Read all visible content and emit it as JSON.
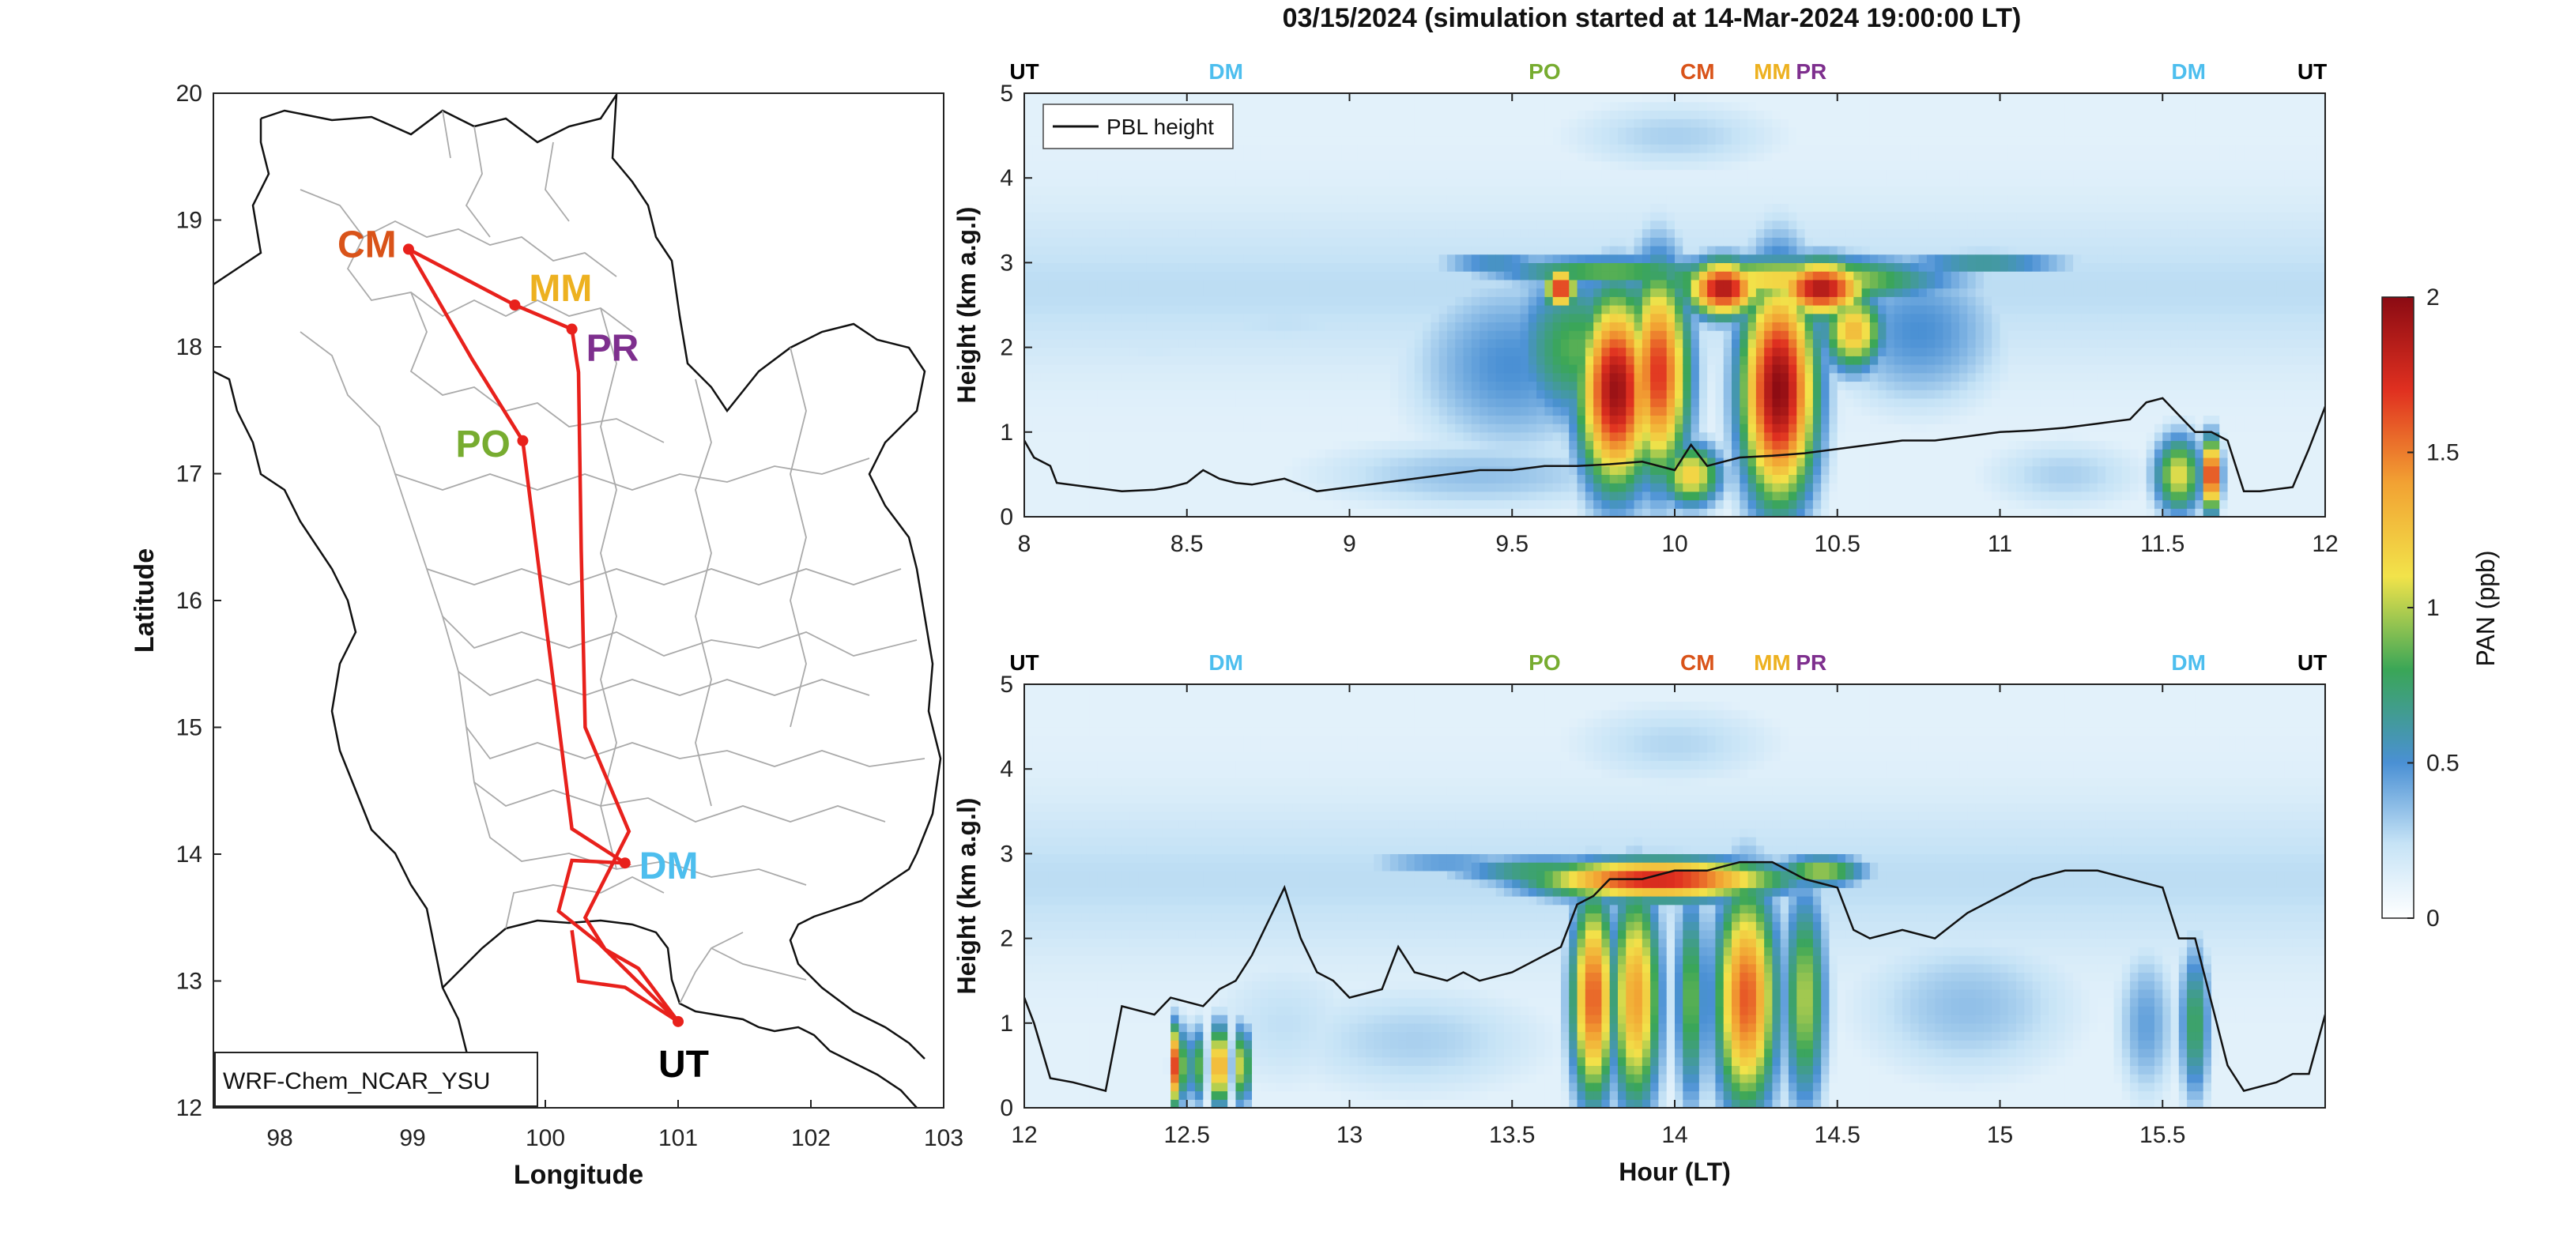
{
  "figure": {
    "title": "03/15/2024 (simulation started at 14-Mar-2024 19:00:00 LT)"
  },
  "map": {
    "xlabel": "Longitude",
    "ylabel": "Latitude",
    "xlim": [
      97.5,
      103
    ],
    "ylim": [
      12,
      20
    ],
    "xticks": [
      "98",
      "99",
      "100",
      "101",
      "102",
      "103"
    ],
    "yticks": [
      "12",
      "13",
      "14",
      "15",
      "16",
      "17",
      "18",
      "19",
      "20"
    ],
    "model_label": "WRF-Chem_NCAR_YSU",
    "route_color": "#e8211c",
    "sites": [
      {
        "name": "CM",
        "lon": 98.97,
        "lat": 18.77,
        "color": "#d95319"
      },
      {
        "name": "MM",
        "lon": 99.77,
        "lat": 18.33,
        "color": "#edb120"
      },
      {
        "name": "PR",
        "lon": 100.2,
        "lat": 18.14,
        "color": "#7e2f8e"
      },
      {
        "name": "PO",
        "lon": 99.83,
        "lat": 17.26,
        "color": "#77ac30"
      },
      {
        "name": "DM",
        "lon": 100.6,
        "lat": 13.93,
        "color": "#4dbeee"
      },
      {
        "name": "UT",
        "lon": 101.0,
        "lat": 12.68,
        "color": "#000000"
      }
    ]
  },
  "colorbar": {
    "label": "PAN (ppb)",
    "ticks": [
      "0",
      "0.5",
      "1",
      "1.5",
      "2"
    ],
    "range": [
      0,
      2
    ]
  },
  "chart_data": [
    {
      "type": "heatmap",
      "name": "upper",
      "xlabel": "",
      "ylabel": "Height (km a.g.l)",
      "xlim": [
        8,
        12
      ],
      "ylim": [
        0,
        5
      ],
      "xticks": [
        "8",
        "8.5",
        "9",
        "9.5",
        "10",
        "10.5",
        "11",
        "11.5",
        "12"
      ],
      "yticks": [
        "0",
        "1",
        "2",
        "3",
        "4",
        "5"
      ],
      "legend": "PBL height",
      "legend_position": "top-left",
      "top_labels": [
        {
          "text": "UT",
          "x": 8.0,
          "color": "#000000"
        },
        {
          "text": "DM",
          "x": 8.62,
          "color": "#4dbeee"
        },
        {
          "text": "PO",
          "x": 9.6,
          "color": "#77ac30"
        },
        {
          "text": "CM",
          "x": 10.07,
          "color": "#d95319"
        },
        {
          "text": "MM",
          "x": 10.3,
          "color": "#edb120"
        },
        {
          "text": "PR",
          "x": 10.42,
          "color": "#7e2f8e"
        },
        {
          "text": "DM",
          "x": 11.58,
          "color": "#4dbeee"
        },
        {
          "text": "UT",
          "x": 11.96,
          "color": "#000000"
        }
      ],
      "pbl_height": {
        "x": [
          8.0,
          8.03,
          8.08,
          8.1,
          8.2,
          8.3,
          8.4,
          8.45,
          8.5,
          8.55,
          8.6,
          8.65,
          8.7,
          8.8,
          8.9,
          9.0,
          9.1,
          9.2,
          9.3,
          9.4,
          9.5,
          9.6,
          9.7,
          9.8,
          9.9,
          10.0,
          10.05,
          10.1,
          10.15,
          10.2,
          10.3,
          10.4,
          10.5,
          10.6,
          10.7,
          10.8,
          10.9,
          11.0,
          11.1,
          11.2,
          11.3,
          11.4,
          11.45,
          11.5,
          11.55,
          11.6,
          11.65,
          11.7,
          11.75,
          11.8,
          11.9,
          11.95,
          12.0
        ],
        "y": [
          0.9,
          0.7,
          0.6,
          0.4,
          0.35,
          0.3,
          0.32,
          0.35,
          0.4,
          0.55,
          0.45,
          0.4,
          0.38,
          0.45,
          0.3,
          0.35,
          0.4,
          0.45,
          0.5,
          0.55,
          0.55,
          0.6,
          0.6,
          0.62,
          0.65,
          0.55,
          0.85,
          0.6,
          0.65,
          0.7,
          0.72,
          0.75,
          0.8,
          0.85,
          0.9,
          0.9,
          0.95,
          1.0,
          1.02,
          1.05,
          1.1,
          1.15,
          1.35,
          1.4,
          1.2,
          1.0,
          1.0,
          0.9,
          0.3,
          0.3,
          0.35,
          0.8,
          1.3
        ]
      },
      "blobs": [
        {
          "x": 9.7,
          "y": 2.0,
          "dx": 0.22,
          "dy": 1.0,
          "v": 0.85
        },
        {
          "x": 9.82,
          "y": 1.5,
          "dx": 0.12,
          "dy": 1.2,
          "v": 1.95
        },
        {
          "x": 9.95,
          "y": 1.7,
          "dx": 0.1,
          "dy": 1.3,
          "v": 1.7
        },
        {
          "x": 10.15,
          "y": 2.7,
          "dx": 0.12,
          "dy": 0.35,
          "v": 1.9
        },
        {
          "x": 10.32,
          "y": 1.5,
          "dx": 0.12,
          "dy": 1.4,
          "v": 2.0
        },
        {
          "x": 10.45,
          "y": 2.7,
          "dx": 0.15,
          "dy": 0.35,
          "v": 1.9
        },
        {
          "x": 10.55,
          "y": 2.2,
          "dx": 0.1,
          "dy": 0.5,
          "v": 1.3
        },
        {
          "x": 9.65,
          "y": 2.7,
          "dx": 0.05,
          "dy": 0.25,
          "v": 1.8
        },
        {
          "x": 10.05,
          "y": 0.5,
          "dx": 0.1,
          "dy": 0.4,
          "v": 1.2
        },
        {
          "x": 10.35,
          "y": 2.8,
          "dx": 0.5,
          "dy": 0.3,
          "v": 1.2
        },
        {
          "x": 9.8,
          "y": 2.9,
          "dx": 0.4,
          "dy": 0.2,
          "v": 0.9
        },
        {
          "x": 9.5,
          "y": 1.8,
          "dx": 0.35,
          "dy": 1.2,
          "v": 0.5
        },
        {
          "x": 10.75,
          "y": 2.2,
          "dx": 0.3,
          "dy": 1.0,
          "v": 0.5
        },
        {
          "x": 10.95,
          "y": 3.0,
          "dx": 0.3,
          "dy": 0.15,
          "v": 0.7
        },
        {
          "x": 9.45,
          "y": 3.0,
          "dx": 0.2,
          "dy": 0.15,
          "v": 0.6
        },
        {
          "x": 8.8,
          "y": 2.3,
          "dx": 0.5,
          "dy": 0.4,
          "v": 0.25
        },
        {
          "x": 8.4,
          "y": 2.0,
          "dx": 0.3,
          "dy": 0.4,
          "v": 0.2
        },
        {
          "x": 11.55,
          "y": 0.5,
          "dx": 0.08,
          "dy": 0.5,
          "v": 1.1
        },
        {
          "x": 11.65,
          "y": 0.5,
          "dx": 0.03,
          "dy": 0.45,
          "v": 1.9
        },
        {
          "x": 10.0,
          "y": 4.5,
          "dx": 0.4,
          "dy": 0.5,
          "v": 0.3
        },
        {
          "x": 9.4,
          "y": 0.5,
          "dx": 0.6,
          "dy": 0.5,
          "v": 0.35
        },
        {
          "x": 11.2,
          "y": 0.5,
          "dx": 0.3,
          "dy": 0.5,
          "v": 0.3
        }
      ]
    },
    {
      "type": "heatmap",
      "name": "lower",
      "xlabel": "Hour (LT)",
      "ylabel": "Height (km a.g.l)",
      "xlim": [
        12,
        16
      ],
      "ylim": [
        0,
        5
      ],
      "xticks": [
        "12",
        "12.5",
        "13",
        "13.5",
        "14",
        "14.5",
        "15",
        "15.5"
      ],
      "yticks": [
        "0",
        "1",
        "2",
        "3",
        "4",
        "5"
      ],
      "top_labels": [
        {
          "text": "UT",
          "x": 12.0,
          "color": "#000000"
        },
        {
          "text": "DM",
          "x": 12.62,
          "color": "#4dbeee"
        },
        {
          "text": "PO",
          "x": 13.6,
          "color": "#77ac30"
        },
        {
          "text": "CM",
          "x": 14.07,
          "color": "#d95319"
        },
        {
          "text": "MM",
          "x": 14.3,
          "color": "#edb120"
        },
        {
          "text": "PR",
          "x": 14.42,
          "color": "#7e2f8e"
        },
        {
          "text": "DM",
          "x": 15.58,
          "color": "#4dbeee"
        },
        {
          "text": "UT",
          "x": 15.96,
          "color": "#000000"
        }
      ],
      "pbl_height": {
        "x": [
          12.0,
          12.03,
          12.08,
          12.15,
          12.2,
          12.25,
          12.3,
          12.4,
          12.45,
          12.55,
          12.6,
          12.65,
          12.7,
          12.75,
          12.8,
          12.85,
          12.9,
          12.95,
          13.0,
          13.1,
          13.15,
          13.2,
          13.3,
          13.35,
          13.4,
          13.5,
          13.55,
          13.6,
          13.65,
          13.7,
          13.75,
          13.8,
          13.9,
          14.0,
          14.1,
          14.2,
          14.3,
          14.4,
          14.5,
          14.55,
          14.6,
          14.7,
          14.8,
          14.9,
          15.0,
          15.1,
          15.2,
          15.3,
          15.4,
          15.5,
          15.55,
          15.6,
          15.7,
          15.75,
          15.8,
          15.85,
          15.9,
          15.95,
          16.0
        ],
        "y": [
          1.3,
          1.0,
          0.35,
          0.3,
          0.25,
          0.2,
          1.2,
          1.1,
          1.3,
          1.2,
          1.4,
          1.5,
          1.8,
          2.2,
          2.6,
          2.0,
          1.6,
          1.5,
          1.3,
          1.4,
          1.9,
          1.6,
          1.5,
          1.6,
          1.5,
          1.6,
          1.7,
          1.8,
          1.9,
          2.4,
          2.5,
          2.7,
          2.7,
          2.8,
          2.8,
          2.9,
          2.9,
          2.7,
          2.6,
          2.1,
          2.0,
          2.1,
          2.0,
          2.3,
          2.5,
          2.7,
          2.8,
          2.8,
          2.7,
          2.6,
          2.0,
          2.0,
          0.5,
          0.2,
          0.25,
          0.3,
          0.4,
          0.4,
          1.1
        ]
      },
      "blobs": [
        {
          "x": 12.47,
          "y": 0.5,
          "dx": 0.02,
          "dy": 0.5,
          "v": 1.9
        },
        {
          "x": 12.53,
          "y": 0.5,
          "dx": 0.03,
          "dy": 0.5,
          "v": 0.9
        },
        {
          "x": 12.6,
          "y": 0.5,
          "dx": 0.02,
          "dy": 0.5,
          "v": 1.9
        },
        {
          "x": 12.67,
          "y": 0.5,
          "dx": 0.03,
          "dy": 0.5,
          "v": 1.1
        },
        {
          "x": 13.75,
          "y": 1.3,
          "dx": 0.07,
          "dy": 1.3,
          "v": 1.6
        },
        {
          "x": 13.88,
          "y": 1.3,
          "dx": 0.08,
          "dy": 1.4,
          "v": 1.4
        },
        {
          "x": 14.05,
          "y": 1.3,
          "dx": 0.05,
          "dy": 1.4,
          "v": 0.9
        },
        {
          "x": 14.22,
          "y": 1.3,
          "dx": 0.1,
          "dy": 1.4,
          "v": 1.6
        },
        {
          "x": 14.4,
          "y": 1.3,
          "dx": 0.07,
          "dy": 1.4,
          "v": 1.0
        },
        {
          "x": 13.95,
          "y": 2.7,
          "dx": 0.4,
          "dy": 0.25,
          "v": 1.8
        },
        {
          "x": 13.6,
          "y": 2.8,
          "dx": 0.3,
          "dy": 0.2,
          "v": 0.8
        },
        {
          "x": 14.45,
          "y": 2.8,
          "dx": 0.15,
          "dy": 0.2,
          "v": 1.0
        },
        {
          "x": 13.3,
          "y": 2.9,
          "dx": 0.3,
          "dy": 0.15,
          "v": 0.5
        },
        {
          "x": 15.6,
          "y": 1.0,
          "dx": 0.05,
          "dy": 1.0,
          "v": 0.8
        },
        {
          "x": 15.45,
          "y": 1.0,
          "dx": 0.1,
          "dy": 1.0,
          "v": 0.45
        },
        {
          "x": 14.9,
          "y": 1.2,
          "dx": 0.4,
          "dy": 1.0,
          "v": 0.35
        },
        {
          "x": 13.2,
          "y": 0.8,
          "dx": 0.5,
          "dy": 0.8,
          "v": 0.3
        },
        {
          "x": 14.0,
          "y": 4.3,
          "dx": 0.4,
          "dy": 0.6,
          "v": 0.28
        },
        {
          "x": 12.8,
          "y": 1.0,
          "dx": 0.3,
          "dy": 1.0,
          "v": 0.25
        }
      ]
    }
  ]
}
